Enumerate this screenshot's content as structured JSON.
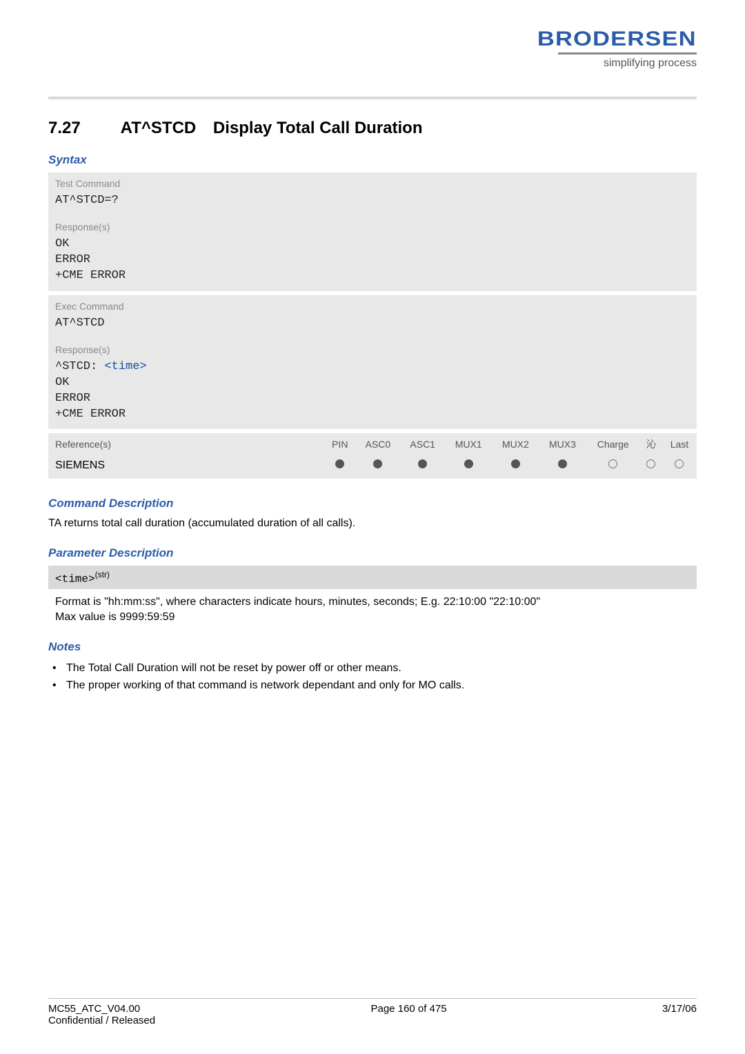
{
  "header": {
    "logo": "BRODERSEN",
    "tagline": "simplifying process"
  },
  "section": {
    "number": "7.27",
    "command": "AT^STCD",
    "title": "Display Total Call Duration"
  },
  "syntax": {
    "heading": "Syntax",
    "test": {
      "label": "Test Command",
      "code": "AT^STCD=?",
      "resp_label": "Response(s)",
      "resp1": "OK",
      "resp2": "ERROR",
      "resp3": "+CME ERROR"
    },
    "exec": {
      "label": "Exec Command",
      "code": "AT^STCD",
      "resp_label": "Response(s)",
      "resp1a": "^STCD: ",
      "resp1b": "<time>",
      "resp2": "OK",
      "resp3": "ERROR",
      "resp4": "+CME ERROR"
    }
  },
  "reftable": {
    "h_ref": "Reference(s)",
    "h_pin": "PIN",
    "h_asc0": "ASC0",
    "h_asc1": "ASC1",
    "h_mux1": "MUX1",
    "h_mux2": "MUX2",
    "h_mux3": "MUX3",
    "h_charge": "Charge",
    "h_arrow": "沁",
    "h_last": "Last",
    "ref_value": "SIEMENS"
  },
  "cmd_desc": {
    "heading": "Command Description",
    "text": "TA returns total call duration (accumulated duration of all calls)."
  },
  "param_desc": {
    "heading": "Parameter Description",
    "name": "<time>",
    "type": "(str)",
    "line1": "Format is \"hh:mm:ss\", where characters indicate hours, minutes, seconds; E.g. 22:10:00 \"22:10:00\"",
    "line2": "Max value is 9999:59:59"
  },
  "notes": {
    "heading": "Notes",
    "n1": "The Total Call Duration will not be reset by power off or other means.",
    "n2": "The proper working of that command is network dependant and only for MO calls."
  },
  "footer": {
    "doc": "MC55_ATC_V04.00",
    "status": "Confidential / Released",
    "page": "Page 160 of 475",
    "date": "3/17/06"
  }
}
